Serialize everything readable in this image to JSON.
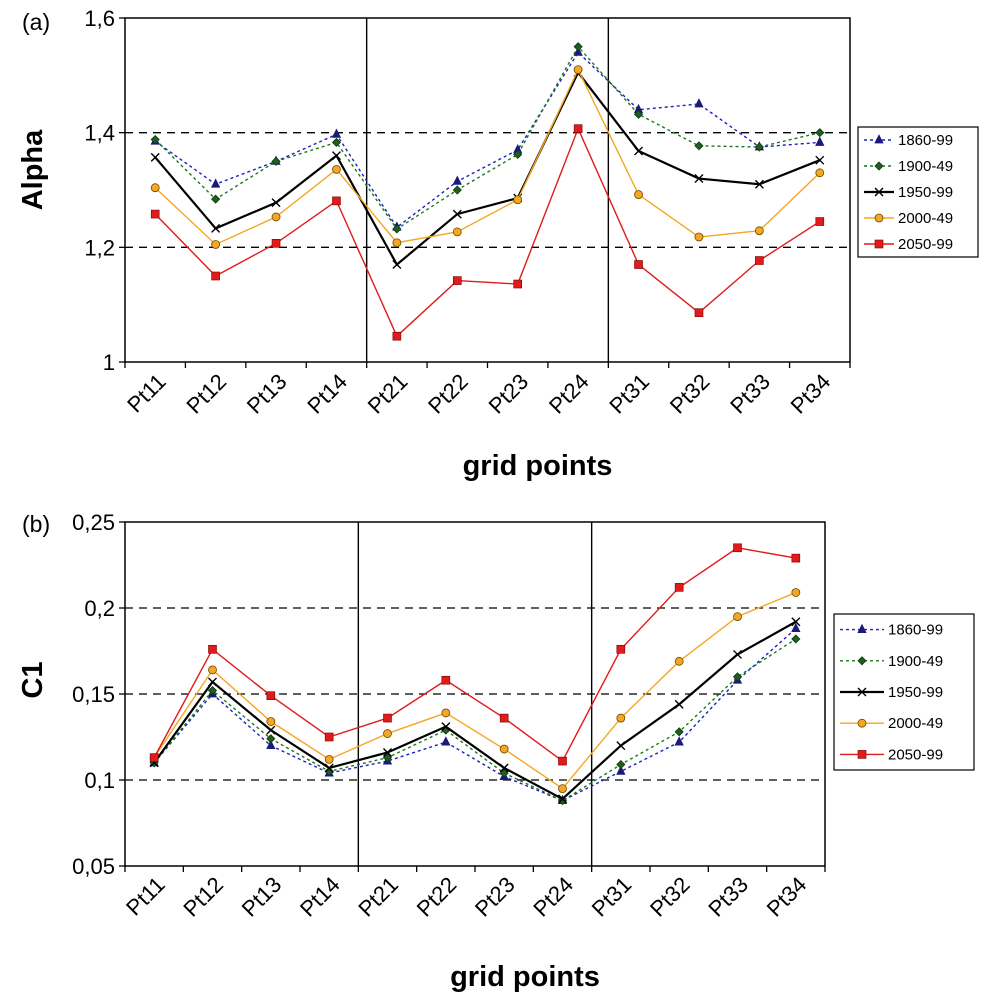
{
  "chart_data": [
    {
      "panel_label": "(a)",
      "type": "line",
      "xlabel": "grid points",
      "ylabel": "Alpha",
      "categories": [
        "Pt11",
        "Pt12",
        "Pt13",
        "Pt14",
        "Pt21",
        "Pt22",
        "Pt23",
        "Pt24",
        "Pt31",
        "Pt32",
        "Pt33",
        "Pt34"
      ],
      "ylim": [
        1,
        1.6
      ],
      "yticks": [
        "1",
        "1,2",
        "1,4",
        "1,6"
      ],
      "ytick_values": [
        1,
        1.2,
        1.4,
        1.6
      ],
      "dashed_gridlines": [
        1.2,
        1.4
      ],
      "group_separators_after": [
        "Pt14",
        "Pt24"
      ],
      "legend_placement": "right",
      "series": [
        {
          "name": "1860-99",
          "color": "#1f1fbf",
          "dash": "dotted",
          "marker": "triangle",
          "values": [
            1.385,
            1.31,
            1.35,
            1.397,
            1.235,
            1.315,
            1.37,
            1.54,
            1.44,
            1.45,
            1.375,
            1.383
          ]
        },
        {
          "name": "1900-49",
          "color": "#1a7a1a",
          "dash": "dotted",
          "marker": "diamond",
          "values": [
            1.388,
            1.284,
            1.35,
            1.383,
            1.232,
            1.3,
            1.362,
            1.55,
            1.432,
            1.377,
            1.375,
            1.4
          ]
        },
        {
          "name": "1950-99",
          "color": "#000000",
          "dash": "solid",
          "marker": "x",
          "values": [
            1.357,
            1.233,
            1.278,
            1.36,
            1.17,
            1.258,
            1.286,
            1.505,
            1.368,
            1.32,
            1.31,
            1.352
          ]
        },
        {
          "name": "2000-49",
          "color": "#f5a623",
          "dash": "solid",
          "marker": "circle",
          "values": [
            1.304,
            1.205,
            1.253,
            1.336,
            1.208,
            1.227,
            1.283,
            1.51,
            1.292,
            1.218,
            1.229,
            1.33
          ]
        },
        {
          "name": "2050-99",
          "color": "#e01b1b",
          "dash": "solid",
          "marker": "square",
          "values": [
            1.258,
            1.15,
            1.207,
            1.281,
            1.045,
            1.142,
            1.136,
            1.407,
            1.17,
            1.086,
            1.177,
            1.245
          ]
        }
      ]
    },
    {
      "panel_label": "(b)",
      "type": "line",
      "xlabel": "grid points",
      "ylabel": "C1",
      "categories": [
        "Pt11",
        "Pt12",
        "Pt13",
        "Pt14",
        "Pt21",
        "Pt22",
        "Pt23",
        "Pt24",
        "Pt31",
        "Pt32",
        "Pt33",
        "Pt34"
      ],
      "ylim": [
        0.05,
        0.25
      ],
      "yticks": [
        "0,05",
        "0,1",
        "0,15",
        "0,2",
        "0,25"
      ],
      "ytick_values": [
        0.05,
        0.1,
        0.15,
        0.2,
        0.25
      ],
      "dashed_gridlines": [
        0.1,
        0.15,
        0.2
      ],
      "group_separators_after": [
        "Pt14",
        "Pt24"
      ],
      "legend_placement": "right",
      "series": [
        {
          "name": "1860-99",
          "color": "#1f1fbf",
          "dash": "dotted",
          "marker": "triangle",
          "values": [
            0.11,
            0.15,
            0.12,
            0.104,
            0.111,
            0.122,
            0.102,
            0.088,
            0.105,
            0.122,
            0.158,
            0.188
          ]
        },
        {
          "name": "1900-49",
          "color": "#1a7a1a",
          "dash": "dotted",
          "marker": "diamond",
          "values": [
            0.11,
            0.152,
            0.124,
            0.105,
            0.113,
            0.129,
            0.104,
            0.088,
            0.109,
            0.128,
            0.16,
            0.182
          ]
        },
        {
          "name": "1950-99",
          "color": "#000000",
          "dash": "solid",
          "marker": "x",
          "values": [
            0.11,
            0.157,
            0.129,
            0.107,
            0.116,
            0.131,
            0.107,
            0.089,
            0.12,
            0.144,
            0.173,
            0.192
          ]
        },
        {
          "name": "2000-49",
          "color": "#f5a623",
          "dash": "solid",
          "marker": "circle",
          "values": [
            0.113,
            0.164,
            0.134,
            0.112,
            0.127,
            0.139,
            0.118,
            0.095,
            0.136,
            0.169,
            0.195,
            0.209
          ]
        },
        {
          "name": "2050-99",
          "color": "#e01b1b",
          "dash": "solid",
          "marker": "square",
          "values": [
            0.113,
            0.176,
            0.149,
            0.125,
            0.136,
            0.158,
            0.136,
            0.111,
            0.176,
            0.212,
            0.235,
            0.229
          ]
        }
      ]
    }
  ]
}
